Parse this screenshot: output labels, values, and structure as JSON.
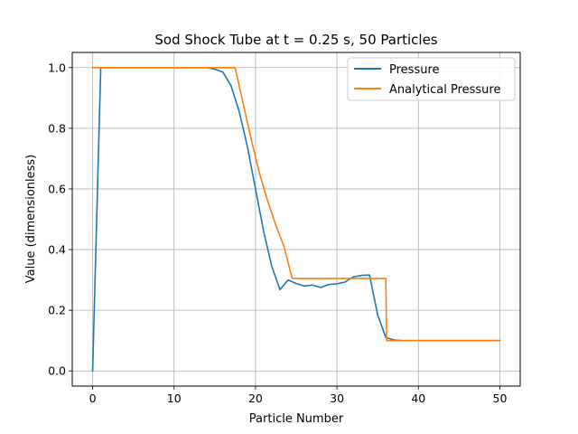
{
  "chart_data": {
    "type": "line",
    "title": "Sod Shock Tube at t = 0.25 s, 50 Particles",
    "xlabel": "Particle Number",
    "ylabel": "Value (dimensionless)",
    "xlim": [
      -2.5,
      52.5
    ],
    "ylim": [
      -0.05,
      1.05
    ],
    "xticks": [
      0,
      10,
      20,
      30,
      40,
      50
    ],
    "xtick_labels": [
      "0",
      "10",
      "20",
      "30",
      "40",
      "50"
    ],
    "yticks": [
      0.0,
      0.2,
      0.4,
      0.6,
      0.8,
      1.0
    ],
    "ytick_labels": [
      "0.0",
      "0.2",
      "0.4",
      "0.6",
      "0.8",
      "1.0"
    ],
    "grid": true,
    "legend_position": "top-right",
    "series": [
      {
        "name": "Pressure",
        "color": "#1f77b4",
        "x": [
          0,
          1,
          2,
          3,
          4,
          5,
          6,
          7,
          8,
          9,
          10,
          11,
          12,
          13,
          14,
          15,
          16,
          17,
          18,
          19,
          20,
          21,
          22,
          23,
          24,
          25,
          26,
          27,
          28,
          29,
          30,
          31,
          32,
          33,
          34,
          35,
          36,
          37,
          38,
          39,
          40,
          41,
          42,
          43,
          44,
          45,
          46,
          47,
          48,
          49,
          50
        ],
        "values": [
          0.0,
          1.0,
          1.0,
          1.0,
          1.0,
          1.0,
          1.0,
          1.0,
          1.0,
          1.0,
          1.0,
          1.0,
          1.0,
          1.0,
          1.0,
          0.995,
          0.985,
          0.94,
          0.855,
          0.74,
          0.6,
          0.46,
          0.345,
          0.268,
          0.3,
          0.288,
          0.28,
          0.283,
          0.275,
          0.285,
          0.287,
          0.293,
          0.31,
          0.315,
          0.316,
          0.185,
          0.11,
          0.102,
          0.1,
          0.1,
          0.1,
          0.1,
          0.1,
          0.1,
          0.1,
          0.1,
          0.1,
          0.1,
          0.1,
          0.1,
          0.1
        ]
      },
      {
        "name": "Analytical Pressure",
        "color": "#ff7f0e",
        "x": [
          0,
          17.5,
          18.5,
          19.5,
          20.5,
          21.5,
          22.5,
          23.5,
          24.5,
          36.0,
          36.1,
          50
        ],
        "values": [
          1.0,
          1.0,
          0.88,
          0.76,
          0.65,
          0.56,
          0.48,
          0.41,
          0.305,
          0.305,
          0.1,
          0.1
        ]
      }
    ]
  }
}
